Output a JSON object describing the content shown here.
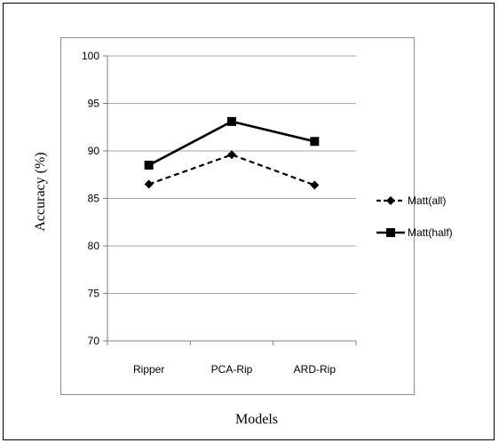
{
  "chart_data": {
    "type": "line",
    "categories": [
      "Ripper",
      "PCA-Rip",
      "ARD-Rip"
    ],
    "series": [
      {
        "name": "Matt(all)",
        "values": [
          86.5,
          89.6,
          86.4
        ],
        "style": "dashed",
        "marker": "diamond",
        "color": "#000000"
      },
      {
        "name": "Matt(half)",
        "values": [
          88.5,
          93.1,
          91.0
        ],
        "style": "solid",
        "marker": "square",
        "color": "#000000"
      }
    ],
    "title": "",
    "xlabel": "Models",
    "ylabel": "Accuracy (%)",
    "ylim": [
      70,
      100
    ],
    "yticks": [
      70,
      75,
      80,
      85,
      90,
      95,
      100
    ],
    "grid": "horizontal",
    "legend": "right"
  }
}
